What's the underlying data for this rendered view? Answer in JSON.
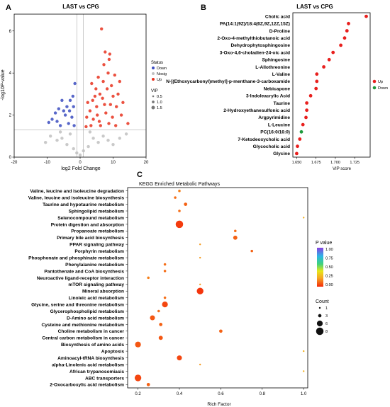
{
  "panels": {
    "A": {
      "letter": "A"
    },
    "B": {
      "letter": "B"
    },
    "C": {
      "letter": "C"
    }
  },
  "colors": {
    "down": "#3b4cc0",
    "nosig": "#c0c0c0",
    "up": "#e8321e",
    "vip_up": "#e8201e",
    "vip_down": "#1e9a3c",
    "threshold": "#999999"
  },
  "chart_data": [
    {
      "type": "scatter",
      "panel": "A",
      "title": "LAST vs CPG",
      "xlabel": "log2 Fold Change",
      "ylabel": "-log10P-value",
      "xlim": [
        -20,
        20
      ],
      "ylim": [
        0,
        6.8
      ],
      "xticks": [
        -20,
        -10,
        0,
        10,
        20
      ],
      "yticks": [
        0,
        2,
        4,
        6
      ],
      "thresholds": {
        "x": [
          -1,
          1
        ],
        "y": 1.3
      },
      "grid": false,
      "legend": {
        "position": "right",
        "status_title": "Status",
        "status_items": [
          {
            "label": "Down",
            "color": "#3b4cc0"
          },
          {
            "label": "Nosig",
            "color": "#c0c0c0"
          },
          {
            "label": "Up",
            "color": "#e8321e"
          }
        ],
        "vip_title": "VIP",
        "vip_items": [
          {
            "label": "0.5"
          },
          {
            "label": "1.0"
          },
          {
            "label": "1.5"
          }
        ]
      },
      "series": [
        {
          "name": "Up",
          "points": [
            [
              6.5,
              6.1
            ],
            [
              7.6,
              5.0
            ],
            [
              9.0,
              4.9
            ],
            [
              8.8,
              4.65
            ],
            [
              7.2,
              4.4
            ],
            [
              12.0,
              3.6
            ],
            [
              8.5,
              4.0
            ],
            [
              10.5,
              3.9
            ],
            [
              5.5,
              3.8
            ],
            [
              9.5,
              3.4
            ],
            [
              3.5,
              3.5
            ],
            [
              11.5,
              3.0
            ],
            [
              13.0,
              2.6
            ],
            [
              7.0,
              3.6
            ],
            [
              4.8,
              3.25
            ],
            [
              6.0,
              3.0
            ],
            [
              8.2,
              3.25
            ],
            [
              10.0,
              2.9
            ],
            [
              2.3,
              2.6
            ],
            [
              3.0,
              2.2
            ],
            [
              5.0,
              2.4
            ],
            [
              6.8,
              2.8
            ],
            [
              9.2,
              2.5
            ],
            [
              11.0,
              2.4
            ],
            [
              12.5,
              2.0
            ],
            [
              14.5,
              1.6
            ],
            [
              2.0,
              1.9
            ],
            [
              4.0,
              1.8
            ],
            [
              5.8,
              1.7
            ],
            [
              7.8,
              2.1
            ],
            [
              9.8,
              1.9
            ],
            [
              10.8,
              1.5
            ],
            [
              3.3,
              1.5
            ],
            [
              6.2,
              1.5
            ],
            [
              8.7,
              1.6
            ],
            [
              1.8,
              1.45
            ],
            [
              4.5,
              2.9
            ],
            [
              7.4,
              2.5
            ],
            [
              5.2,
              2.0
            ],
            [
              3.8,
              2.7
            ]
          ]
        },
        {
          "name": "Down",
          "points": [
            [
              -1.6,
              3.5
            ],
            [
              -2.0,
              2.4
            ],
            [
              -3.0,
              2.7
            ],
            [
              -4.0,
              2.4
            ],
            [
              -5.5,
              2.7
            ],
            [
              -6.5,
              2.3
            ],
            [
              -7.5,
              2.1
            ],
            [
              -8.5,
              1.8
            ],
            [
              -9.5,
              1.65
            ],
            [
              -2.5,
              1.9
            ],
            [
              -3.5,
              1.6
            ],
            [
              -4.5,
              2.0
            ],
            [
              -6.0,
              1.5
            ],
            [
              -7.0,
              1.7
            ],
            [
              -5.0,
              2.2
            ],
            [
              -1.8,
              1.5
            ],
            [
              -3.2,
              2.2
            ],
            [
              -2.2,
              2.9
            ]
          ]
        },
        {
          "name": "Nosig",
          "points": [
            [
              -9.0,
              1.0
            ],
            [
              -7.0,
              0.8
            ],
            [
              -5.5,
              0.9
            ],
            [
              -4.0,
              0.6
            ],
            [
              -3.0,
              1.1
            ],
            [
              -2.0,
              0.4
            ],
            [
              -1.0,
              0.2
            ],
            [
              0.0,
              0.1
            ],
            [
              1.0,
              0.3
            ],
            [
              2.5,
              0.5
            ],
            [
              4.0,
              0.9
            ],
            [
              5.5,
              0.7
            ],
            [
              7.0,
              1.0
            ],
            [
              8.5,
              0.8
            ],
            [
              10.0,
              0.6
            ],
            [
              12.0,
              0.9
            ],
            [
              14.0,
              1.1
            ],
            [
              -10.5,
              0.7
            ],
            [
              -6.0,
              1.2
            ],
            [
              3.0,
              1.2
            ]
          ]
        }
      ]
    },
    {
      "type": "scatter",
      "panel": "B",
      "title": "LAST vs CPG",
      "xlabel": "VIP score",
      "xlim": [
        1.645,
        1.745
      ],
      "xticks": [
        "1.650",
        "1.675",
        "1.700",
        "1.725"
      ],
      "legend": {
        "position": "right",
        "items": [
          {
            "label": "Up",
            "color": "#e8201e"
          },
          {
            "label": "Down",
            "color": "#1e9a3c"
          }
        ]
      },
      "categories": [
        "Cholic acid",
        "PA(14:1(9Z)/18:4(6Z,9Z,12Z,15Z)",
        "D-Proline",
        "2-Oxo-4-methylthiobutanoic acid",
        "Dehydrophytosphingosine",
        "3-Oxo-4,6-choladien-24-oic acid",
        "Sphingosine",
        "L-Allothreonine",
        "L-Valine",
        "N-[(Ethoxycarbonyl)methyl]-p-menthane-3-carboxamide",
        "Nebicapone",
        "3-Indoleacrylic Acid",
        "Taurine",
        "2-Hydroxyethanesulfonic acid",
        "Argpyrimidine",
        "L-Leucine",
        "PC(16:0/16:0)",
        "7-Ketodeoxycholic acid",
        "Glycocholic acid",
        "Glycine"
      ],
      "values": [
        1.74,
        1.717,
        1.715,
        1.712,
        1.707,
        1.697,
        1.692,
        1.685,
        1.676,
        1.676,
        1.675,
        1.668,
        1.663,
        1.663,
        1.662,
        1.658,
        1.656,
        1.654,
        1.651,
        1.65
      ],
      "status": [
        "Up",
        "Up",
        "Up",
        "Up",
        "Up",
        "Up",
        "Up",
        "Up",
        "Up",
        "Up",
        "Up",
        "Up",
        "Up",
        "Up",
        "Up",
        "Up",
        "Down",
        "Up",
        "Up",
        "Up"
      ]
    },
    {
      "type": "scatter",
      "panel": "C",
      "title": "KEGG Enriched Metabolic Pathways",
      "xlabel": "Rich Factor",
      "xlim": [
        0.15,
        1.02
      ],
      "xticks": [
        "0.2",
        "0.4",
        "0.6",
        "0.8",
        "1.0"
      ],
      "legend": {
        "position": "right",
        "color_title": "P value",
        "color_ticks": [
          "1.00",
          "0.75",
          "0.50",
          "0.25",
          "0.00"
        ],
        "size_title": "Count",
        "size_items": [
          "1",
          "3",
          "6",
          "8"
        ]
      },
      "categories": [
        "Valine, leucine and isoleucine degradation",
        "Valine, leucine and isoleucine biosynthesis",
        "Taurine and hypotaurine metabolism",
        "Sphingolipid metabolism",
        "Selenocompound metabolism",
        "Protein digestion and absorption",
        "Propanoate metabolism",
        "Primary bile acid biosynthesis",
        "PPAR signaling pathway",
        "Porphyrin metabolism",
        "Phosphonate and phosphinate metabolism",
        "Phenylalanine metabolism",
        "Pantothenate and CoA biosynthesis",
        "Neuroactive ligand-receptor interaction",
        "mTOR signaling pathway",
        "Mineral absorption",
        "Linoleic acid metabolism",
        "Glycine, serine and threonine metabolism",
        "Glycerophospholipid metabolism",
        "D-Amino acid metabolism",
        "Cysteine and methionine metabolism",
        "Choline metabolism in cancer",
        "Central carbon metabolism in cancer",
        "Biosynthesis of amino acids",
        "Apoptosis",
        "Aminoacyl-tRNA biosynthesis",
        "alpha-Linolenic acid metabolism",
        "African trypanosomiasis",
        "ABC transporters",
        "2-Oxocarboxylic acid metabolism"
      ],
      "rich_factor": [
        0.4,
        0.38,
        0.43,
        0.4,
        1.0,
        0.4,
        0.67,
        0.67,
        0.5,
        0.75,
        0.5,
        0.33,
        0.33,
        0.25,
        0.5,
        0.5,
        0.33,
        0.33,
        0.3,
        0.27,
        0.31,
        0.6,
        0.31,
        0.2,
        1.0,
        0.4,
        0.5,
        1.0,
        0.2,
        0.25
      ],
      "count": [
        2,
        2,
        3,
        2,
        1,
        8,
        2,
        4,
        1,
        2,
        1,
        2,
        2,
        2,
        1,
        7,
        2,
        6,
        2,
        5,
        3,
        3,
        4,
        6,
        1,
        5,
        1,
        1,
        7,
        3
      ],
      "p_value": [
        0.15,
        0.12,
        0.1,
        0.12,
        0.25,
        0.03,
        0.12,
        0.1,
        0.2,
        0.1,
        0.2,
        0.12,
        0.12,
        0.15,
        0.2,
        0.02,
        0.12,
        0.05,
        0.12,
        0.08,
        0.1,
        0.1,
        0.08,
        0.08,
        0.25,
        0.05,
        0.2,
        0.25,
        0.05,
        0.1
      ]
    }
  ]
}
